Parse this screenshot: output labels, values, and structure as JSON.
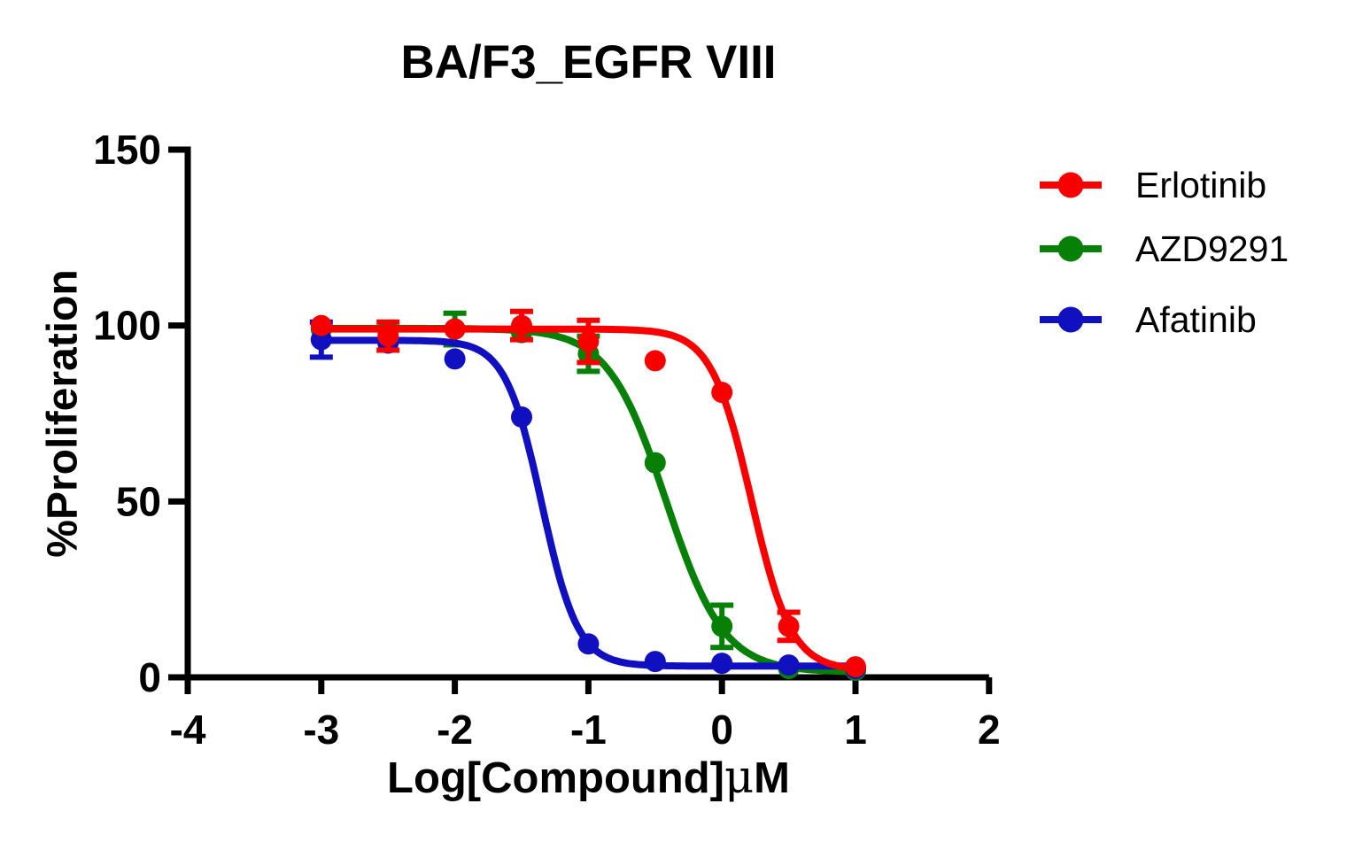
{
  "chart_data": {
    "type": "line",
    "title": "BA/F3_EGFR VIII",
    "ylabel": "%Proliferation",
    "xlabel_prefix": "Log[Compound]",
    "xlabel_mu": "μ",
    "xlabel_suffix": "M",
    "xlim": [
      -4,
      2
    ],
    "ylim": [
      0,
      150
    ],
    "x_ticks": [
      -4,
      -3,
      -2,
      -1,
      0,
      1,
      2
    ],
    "y_ticks": [
      0,
      50,
      100,
      150
    ],
    "grid": false,
    "legend_position": "right-outside",
    "axis_color": "#000000",
    "background_color": "#ffffff",
    "draw_order": [
      1,
      2,
      0
    ],
    "series": [
      {
        "name": "Erlotinib",
        "color": "#F80000",
        "x": [
          -3,
          -2.5,
          -2,
          -1.5,
          -1,
          -0.5,
          0,
          0.5,
          1
        ],
        "y": [
          100,
          97,
          99,
          100,
          95.5,
          90,
          81,
          14.5,
          3
        ],
        "err": [
          0,
          4,
          0,
          4,
          6,
          0,
          0,
          4,
          0
        ],
        "fit": {
          "top": 99,
          "bottom": 2,
          "logic50": 0.22,
          "hill": 2.9
        }
      },
      {
        "name": "AZD9291",
        "color": "#068006",
        "x": [
          -3,
          -2.5,
          -2,
          -1.5,
          -1,
          -0.5,
          0,
          0.5,
          1
        ],
        "y": [
          99,
          98.5,
          99,
          98,
          92,
          61,
          14.5,
          2.5,
          2
        ],
        "err": [
          0,
          0,
          4.5,
          0,
          5,
          0,
          6,
          0,
          0
        ],
        "fit": {
          "top": 99.2,
          "bottom": 1.5,
          "logic50": -0.42,
          "hill": 2.0
        }
      },
      {
        "name": "Afatinib",
        "color": "#1010C0",
        "x": [
          -3,
          -2.5,
          -2,
          -1.5,
          -1,
          -0.5,
          0,
          0.5,
          1
        ],
        "y": [
          96,
          95,
          90.5,
          74,
          9.5,
          4.5,
          4,
          3.5,
          2.5
        ],
        "err": [
          5,
          0,
          0,
          0,
          0,
          0,
          0,
          0,
          0
        ],
        "fit": {
          "top": 95.8,
          "bottom": 3.2,
          "logic50": -1.35,
          "hill": 3.2
        }
      }
    ]
  }
}
